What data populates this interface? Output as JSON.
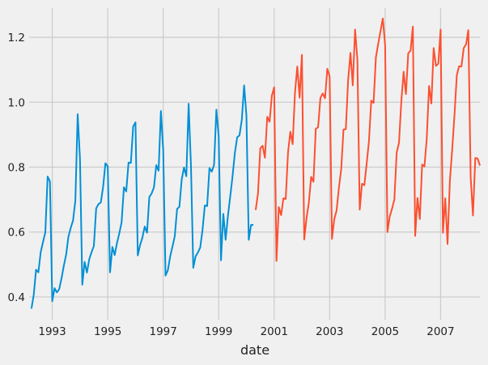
{
  "chart_data": {
    "type": "line",
    "xlabel": "date",
    "ylabel": "",
    "xlim": [
      "1992-03-01",
      "2008-06-01"
    ],
    "ylim": [
      0.33,
      1.29
    ],
    "grid": true,
    "legend": "none",
    "x_ticks": [
      "1993",
      "1995",
      "1997",
      "1999",
      "2001",
      "2003",
      "2005",
      "2007"
    ],
    "y_ticks": [
      "0.4",
      "0.6",
      "0.8",
      "1.0",
      "1.2"
    ],
    "start": "1992-04-01",
    "frequency": "monthly",
    "series": [
      {
        "color": "#008fd5",
        "start": "1992-04-01",
        "values": [
          0.364,
          0.407,
          0.484,
          0.476,
          0.538,
          0.569,
          0.599,
          0.771,
          0.756,
          0.387,
          0.427,
          0.414,
          0.424,
          0.457,
          0.496,
          0.53,
          0.586,
          0.613,
          0.636,
          0.697,
          0.963,
          0.825,
          0.438,
          0.508,
          0.475,
          0.516,
          0.538,
          0.557,
          0.673,
          0.686,
          0.691,
          0.739,
          0.812,
          0.803,
          0.476,
          0.554,
          0.529,
          0.566,
          0.596,
          0.63,
          0.738,
          0.725,
          0.814,
          0.813,
          0.925,
          0.938,
          0.528,
          0.56,
          0.583,
          0.617,
          0.598,
          0.708,
          0.719,
          0.738,
          0.806,
          0.789,
          0.973,
          0.853,
          0.466,
          0.482,
          0.524,
          0.555,
          0.587,
          0.671,
          0.678,
          0.762,
          0.799,
          0.772,
          0.995,
          0.806,
          0.49,
          0.525,
          0.537,
          0.552,
          0.606,
          0.682,
          0.68,
          0.797,
          0.786,
          0.807,
          0.977,
          0.896,
          0.513,
          0.656,
          0.576,
          0.65,
          0.71,
          0.772,
          0.844,
          0.892,
          0.898,
          0.946,
          1.052,
          0.958,
          0.576,
          0.622,
          0.622
        ]
      },
      {
        "color": "#fc4f30",
        "start": "2000-05-01",
        "values": [
          0.668,
          0.719,
          0.858,
          0.866,
          0.829,
          0.955,
          0.94,
          1.02,
          1.046,
          0.511,
          0.677,
          0.652,
          0.704,
          0.702,
          0.846,
          0.909,
          0.871,
          1.029,
          1.11,
          1.014,
          1.146,
          0.577,
          0.643,
          0.691,
          0.77,
          0.755,
          0.918,
          0.923,
          1.013,
          1.027,
          1.012,
          1.103,
          1.079,
          0.579,
          0.64,
          0.666,
          0.736,
          0.794,
          0.916,
          0.917,
          1.069,
          1.152,
          1.052,
          1.224,
          1.131,
          0.669,
          0.749,
          0.744,
          0.81,
          0.88,
          1.005,
          0.998,
          1.138,
          1.18,
          1.219,
          1.258,
          1.176,
          0.6,
          0.648,
          0.672,
          0.701,
          0.845,
          0.875,
          1.002,
          1.094,
          1.025,
          1.151,
          1.159,
          1.233,
          0.588,
          0.705,
          0.64,
          0.808,
          0.802,
          0.887,
          1.05,
          0.996,
          1.167,
          1.112,
          1.119,
          1.224,
          0.598,
          0.704,
          0.563,
          0.757,
          0.853,
          0.96,
          1.083,
          1.111,
          1.11,
          1.167,
          1.178,
          1.222,
          0.769,
          0.651,
          0.828,
          0.827,
          0.805
        ]
      }
    ]
  }
}
